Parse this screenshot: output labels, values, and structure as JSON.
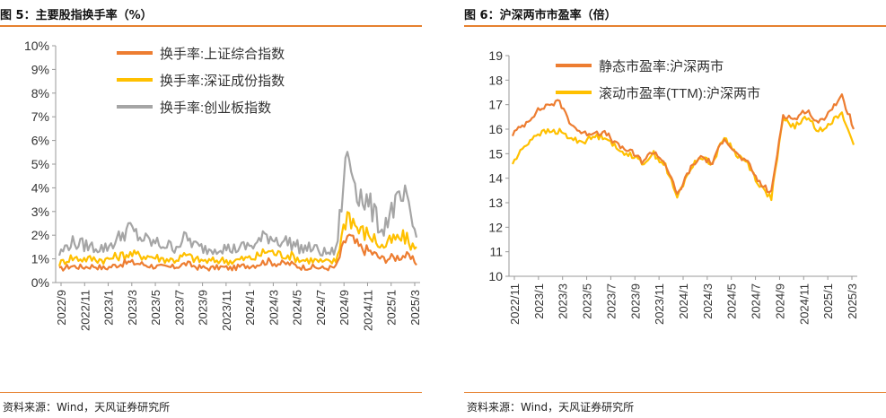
{
  "colors": {
    "accent": "#e6812f",
    "orange": "#ed7d31",
    "yellow": "#ffc000",
    "gray": "#a5a5a5"
  },
  "panels": [
    {
      "title": "图 5：主要股指换手率（%）",
      "source": "资料来源：Wind，天风证券研究所"
    },
    {
      "title": "图 6：沪深两市市盈率（倍）",
      "source": "资料来源：Wind，天风证券研究所"
    }
  ],
  "chart_data": [
    {
      "type": "line",
      "title": "图 5：主要股指换手率（%）",
      "ylim": [
        0,
        10
      ],
      "yticks": [
        "0%",
        "1%",
        "2%",
        "3%",
        "4%",
        "5%",
        "6%",
        "7%",
        "8%",
        "9%",
        "10%"
      ],
      "xticks": [
        "2022/9",
        "2022/11",
        "2023/1",
        "2023/3",
        "2023/5",
        "2023/7",
        "2023/9",
        "2023/11",
        "2024/1",
        "2024/3",
        "2024/5",
        "2024/7",
        "2024/9",
        "2024/11",
        "2025/1",
        "2025/3"
      ],
      "x": [
        "2022/9",
        "2022/10",
        "2022/11",
        "2022/12",
        "2023/1",
        "2023/2",
        "2023/3",
        "2023/4",
        "2023/5",
        "2023/6",
        "2023/7",
        "2023/8",
        "2023/9",
        "2023/10",
        "2023/11",
        "2023/12",
        "2024/1",
        "2024/2",
        "2024/3",
        "2024/4",
        "2024/5",
        "2024/6",
        "2024/7",
        "2024/8",
        "2024/9",
        "2024/10",
        "2024/11",
        "2024/12",
        "2025/1",
        "2025/2",
        "2025/3",
        "2025/4"
      ],
      "legend_position": "top-center",
      "series": [
        {
          "name": "换手率:上证综合指数",
          "color": "#ed7d31",
          "values": [
            0.55,
            0.7,
            0.65,
            0.7,
            0.6,
            0.75,
            0.85,
            0.8,
            0.7,
            0.65,
            0.65,
            0.8,
            0.65,
            0.6,
            0.65,
            0.6,
            0.7,
            0.75,
            0.9,
            0.8,
            0.8,
            0.65,
            0.65,
            0.6,
            0.65,
            2.0,
            1.5,
            1.3,
            1.0,
            1.05,
            1.15,
            0.85
          ]
        },
        {
          "name": "换手率:深证成份指数",
          "color": "#ffc000",
          "values": [
            0.8,
            1.05,
            1.0,
            1.0,
            0.95,
            1.1,
            1.2,
            1.15,
            1.1,
            1.0,
            0.95,
            1.15,
            0.95,
            0.9,
            0.95,
            0.9,
            1.0,
            1.05,
            1.35,
            1.2,
            1.15,
            0.95,
            0.95,
            0.85,
            0.9,
            3.0,
            2.2,
            2.0,
            1.5,
            1.8,
            1.9,
            1.35
          ]
        },
        {
          "name": "换手率:创业板指数",
          "color": "#a5a5a5",
          "values": [
            1.2,
            1.7,
            1.6,
            1.5,
            1.45,
            1.8,
            2.3,
            1.9,
            1.7,
            1.6,
            1.5,
            1.9,
            1.5,
            1.4,
            1.5,
            1.4,
            1.5,
            1.6,
            2.0,
            1.8,
            1.7,
            1.45,
            1.45,
            1.25,
            1.3,
            5.5,
            3.8,
            3.2,
            2.2,
            3.2,
            3.5,
            1.9
          ]
        }
      ]
    },
    {
      "type": "line",
      "title": "图 6：沪深两市市盈率（倍）",
      "ylim": [
        10,
        19
      ],
      "yticks": [
        "10",
        "11",
        "12",
        "13",
        "14",
        "15",
        "16",
        "17",
        "18",
        "19"
      ],
      "xticks": [
        "2022/11",
        "2023/1",
        "2023/3",
        "2023/5",
        "2023/7",
        "2023/9",
        "2023/11",
        "2024/1",
        "2024/3",
        "2024/5",
        "2024/7",
        "2024/9",
        "2024/11",
        "2025/1",
        "2025/3"
      ],
      "x": [
        "2022/11",
        "2022/12",
        "2023/1",
        "2023/2",
        "2023/3",
        "2023/4",
        "2023/5",
        "2023/6",
        "2023/7",
        "2023/8",
        "2023/9",
        "2023/10",
        "2023/11",
        "2023/12",
        "2024/1",
        "2024/2",
        "2024/3",
        "2024/4",
        "2024/5",
        "2024/6",
        "2024/7",
        "2024/8",
        "2024/9",
        "2024/10",
        "2024/11",
        "2024/12",
        "2025/1",
        "2025/2",
        "2025/3",
        "2025/4"
      ],
      "legend_position": "top-center",
      "series": [
        {
          "name": "静态市盈率:沪深两市",
          "color": "#ed7d31",
          "values": [
            15.8,
            16.2,
            16.7,
            17.0,
            17.1,
            16.2,
            15.8,
            15.9,
            15.8,
            15.3,
            15.1,
            14.7,
            15.1,
            14.6,
            13.3,
            14.3,
            14.9,
            14.6,
            15.7,
            15.0,
            14.6,
            13.8,
            13.4,
            16.6,
            16.4,
            16.8,
            16.2,
            16.8,
            17.3,
            16.1
          ]
        },
        {
          "name": "滚动市盈率(TTM):沪深两市",
          "color": "#ffc000",
          "values": [
            14.6,
            15.3,
            15.8,
            15.9,
            15.9,
            15.6,
            15.5,
            15.7,
            15.7,
            15.1,
            15.0,
            14.6,
            15.0,
            14.5,
            13.2,
            14.3,
            14.9,
            14.6,
            15.7,
            15.0,
            14.6,
            13.7,
            13.2,
            16.4,
            16.1,
            16.5,
            15.9,
            16.3,
            16.6,
            15.4
          ]
        }
      ]
    }
  ]
}
